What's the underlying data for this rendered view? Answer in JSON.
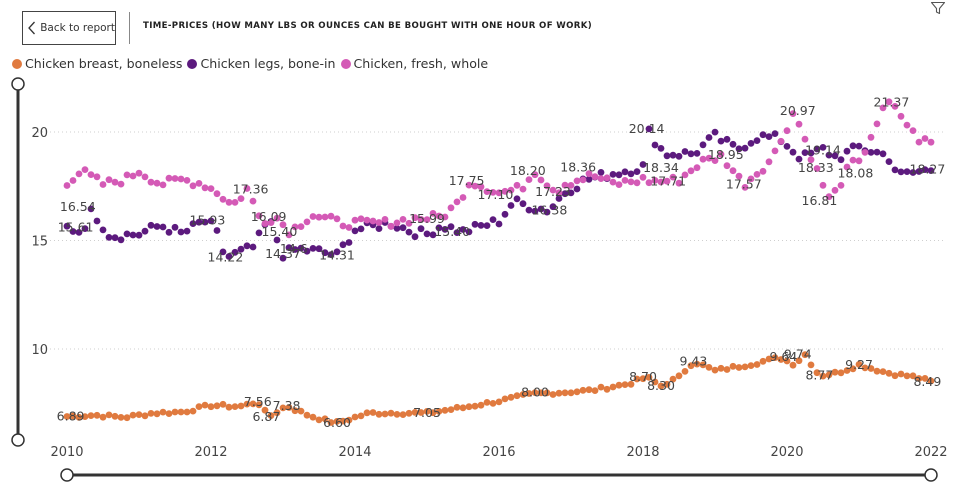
{
  "header": {
    "back_label": "Back to report",
    "title": "TIME-PRICES (HOW MANY LBS OR OUNCES CAN BE BOUGHT WITH ONE HOUR OF WORK)"
  },
  "icons": {
    "back": "chevron-left-icon",
    "filter": "filter-icon"
  },
  "chart_data": {
    "type": "scatter",
    "title": "TIME-PRICES (HOW MANY LBS OR OUNCES CAN BE BOUGHT WITH ONE HOUR OF WORK)",
    "xlabel": "",
    "ylabel": "",
    "xlim": [
      2010,
      2022
    ],
    "ylim": [
      5.3,
      22.2
    ],
    "x_ticks": [
      2010,
      2012,
      2014,
      2016,
      2018,
      2020,
      2022
    ],
    "y_ticks": [
      10,
      15,
      20
    ],
    "grid": "horizontal-dotted",
    "legend_position": "top-left",
    "series": [
      {
        "name": "Chicken breast, boneless",
        "color": "#E07A3F",
        "anchors": [
          [
            2010.0,
            6.89
          ],
          [
            2010.4,
            6.95
          ],
          [
            2010.8,
            6.85
          ],
          [
            2011.2,
            7.05
          ],
          [
            2011.6,
            7.1
          ],
          [
            2012.0,
            7.4
          ],
          [
            2012.4,
            7.35
          ],
          [
            2012.65,
            7.56
          ],
          [
            2012.8,
            6.87
          ],
          [
            2013.05,
            7.38
          ],
          [
            2013.35,
            6.95
          ],
          [
            2013.6,
            6.7
          ],
          [
            2013.75,
            6.6
          ],
          [
            2014.2,
            7.05
          ],
          [
            2014.6,
            7.05
          ],
          [
            2015.0,
            7.05
          ],
          [
            2015.5,
            7.3
          ],
          [
            2016.0,
            7.6
          ],
          [
            2016.5,
            7.95
          ],
          [
            2016.9,
            8.0
          ],
          [
            2017.3,
            8.1
          ],
          [
            2017.8,
            8.4
          ],
          [
            2018.05,
            8.7
          ],
          [
            2018.25,
            8.3
          ],
          [
            2018.5,
            8.7
          ],
          [
            2018.7,
            9.43
          ],
          [
            2019.0,
            9.0
          ],
          [
            2019.5,
            9.3
          ],
          [
            2019.9,
            9.6
          ],
          [
            2020.1,
            9.3
          ],
          [
            2020.25,
            9.74
          ],
          [
            2020.45,
            8.77
          ],
          [
            2020.7,
            8.9
          ],
          [
            2021.0,
            9.27
          ],
          [
            2021.4,
            8.9
          ],
          [
            2021.8,
            8.7
          ],
          [
            2022.0,
            8.49
          ]
        ],
        "labels": [
          {
            "x": 2010.05,
            "y": 6.89,
            "text": "6.89"
          },
          {
            "x": 2012.65,
            "y": 7.56,
            "text": "7.56"
          },
          {
            "x": 2012.77,
            "y": 6.87,
            "text": "6.87"
          },
          {
            "x": 2013.05,
            "y": 7.38,
            "text": "7.38"
          },
          {
            "x": 2013.75,
            "y": 6.6,
            "text": "6.60"
          },
          {
            "x": 2015.0,
            "y": 7.05,
            "text": "7.05"
          },
          {
            "x": 2016.5,
            "y": 8.0,
            "text": "8.00"
          },
          {
            "x": 2018.0,
            "y": 8.7,
            "text": "8.70"
          },
          {
            "x": 2018.25,
            "y": 8.3,
            "text": "8.30"
          },
          {
            "x": 2018.7,
            "y": 9.43,
            "text": "9.43"
          },
          {
            "x": 2020.15,
            "y": 9.74,
            "text": "9.74"
          },
          {
            "x": 2019.95,
            "y": 9.64,
            "text": "9.64"
          },
          {
            "x": 2020.45,
            "y": 8.77,
            "text": "8.77"
          },
          {
            "x": 2021.0,
            "y": 9.27,
            "text": "9.27"
          },
          {
            "x": 2021.95,
            "y": 8.49,
            "text": "8.49"
          }
        ]
      },
      {
        "name": "Chicken legs, bone-in",
        "color": "#5C1A7E",
        "anchors": [
          [
            2010.0,
            15.6
          ],
          [
            2010.2,
            15.4
          ],
          [
            2010.35,
            16.4
          ],
          [
            2010.6,
            15.2
          ],
          [
            2011.0,
            15.3
          ],
          [
            2011.3,
            15.7
          ],
          [
            2011.6,
            15.3
          ],
          [
            2011.9,
            15.9
          ],
          [
            2012.05,
            15.6
          ],
          [
            2012.2,
            14.2
          ],
          [
            2012.6,
            14.7
          ],
          [
            2012.8,
            16.0
          ],
          [
            2013.0,
            14.37
          ],
          [
            2013.2,
            14.6
          ],
          [
            2013.5,
            14.5
          ],
          [
            2013.75,
            14.31
          ],
          [
            2014.0,
            15.5
          ],
          [
            2014.5,
            15.8
          ],
          [
            2014.8,
            15.4
          ],
          [
            2015.0,
            15.3
          ],
          [
            2015.2,
            15.7
          ],
          [
            2015.5,
            15.4
          ],
          [
            2016.0,
            15.9
          ],
          [
            2016.2,
            16.8
          ],
          [
            2016.5,
            16.5
          ],
          [
            2016.7,
            16.4
          ],
          [
            2016.9,
            17.2
          ],
          [
            2017.2,
            17.8
          ],
          [
            2017.6,
            18.1
          ],
          [
            2018.0,
            18.4
          ],
          [
            2018.05,
            20.14
          ],
          [
            2018.3,
            19.0
          ],
          [
            2018.7,
            19.0
          ],
          [
            2019.0,
            19.8
          ],
          [
            2019.3,
            19.2
          ],
          [
            2019.6,
            19.8
          ],
          [
            2019.9,
            19.7
          ],
          [
            2020.2,
            18.8
          ],
          [
            2020.5,
            19.2
          ],
          [
            2020.7,
            18.8
          ],
          [
            2021.0,
            19.3
          ],
          [
            2021.4,
            18.9
          ],
          [
            2021.55,
            18.0
          ],
          [
            2022.0,
            18.27
          ]
        ],
        "labels": [
          {
            "x": 2010.12,
            "y": 15.61,
            "text": "15.61"
          },
          {
            "x": 2012.2,
            "y": 14.22,
            "text": "14.22"
          },
          {
            "x": 2013.0,
            "y": 14.37,
            "text": "14.37"
          },
          {
            "x": 2013.15,
            "y": 14.6,
            "text": "14.6"
          },
          {
            "x": 2013.75,
            "y": 14.31,
            "text": "14.31"
          },
          {
            "x": 2015.35,
            "y": 15.4,
            "text": "15.40"
          },
          {
            "x": 2016.7,
            "y": 16.38,
            "text": "16.38"
          },
          {
            "x": 2018.05,
            "y": 20.14,
            "text": "20.14"
          },
          {
            "x": 2018.25,
            "y": 18.34,
            "text": "18.34"
          },
          {
            "x": 2019.15,
            "y": 18.95,
            "text": "18.95"
          },
          {
            "x": 2020.5,
            "y": 19.14,
            "text": "19.14"
          },
          {
            "x": 2020.95,
            "y": 18.08,
            "text": "18.08"
          },
          {
            "x": 2021.95,
            "y": 18.27,
            "text": "18.27"
          }
        ]
      },
      {
        "name": "Chicken, fresh, whole",
        "color": "#D45AB6",
        "anchors": [
          [
            2010.0,
            17.7
          ],
          [
            2010.2,
            18.2
          ],
          [
            2010.5,
            17.6
          ],
          [
            2010.8,
            17.8
          ],
          [
            2011.0,
            18.2
          ],
          [
            2011.3,
            17.6
          ],
          [
            2011.6,
            17.8
          ],
          [
            2011.9,
            17.6
          ],
          [
            2012.1,
            17.2
          ],
          [
            2012.3,
            16.6
          ],
          [
            2012.5,
            17.36
          ],
          [
            2012.7,
            15.9
          ],
          [
            2012.9,
            16.09
          ],
          [
            2013.1,
            15.4
          ],
          [
            2013.4,
            16.2
          ],
          [
            2013.8,
            15.8
          ],
          [
            2014.0,
            15.8
          ],
          [
            2014.4,
            15.8
          ],
          [
            2014.8,
            15.99
          ],
          [
            2015.2,
            16.1
          ],
          [
            2015.4,
            16.6
          ],
          [
            2015.6,
            17.75
          ],
          [
            2016.0,
            17.2
          ],
          [
            2016.3,
            17.4
          ],
          [
            2016.5,
            18.2
          ],
          [
            2016.8,
            17.23
          ],
          [
            2016.9,
            17.6
          ],
          [
            2017.3,
            18.0
          ],
          [
            2017.6,
            17.6
          ],
          [
            2018.0,
            17.8
          ],
          [
            2018.2,
            17.71
          ],
          [
            2018.5,
            17.8
          ],
          [
            2018.8,
            18.6
          ],
          [
            2019.1,
            18.9
          ],
          [
            2019.4,
            17.57
          ],
          [
            2019.8,
            18.8
          ],
          [
            2020.1,
            20.97
          ],
          [
            2020.4,
            18.33
          ],
          [
            2020.6,
            16.81
          ],
          [
            2020.9,
            18.6
          ],
          [
            2021.0,
            18.5
          ],
          [
            2021.2,
            20.1
          ],
          [
            2021.4,
            21.37
          ],
          [
            2021.6,
            20.7
          ],
          [
            2021.8,
            19.7
          ],
          [
            2022.0,
            19.5
          ]
        ],
        "labels": [
          {
            "x": 2010.15,
            "y": 16.54,
            "text": "16.54"
          },
          {
            "x": 2011.95,
            "y": 15.93,
            "text": "15.93"
          },
          {
            "x": 2012.55,
            "y": 17.36,
            "text": "17.36"
          },
          {
            "x": 2012.8,
            "y": 16.09,
            "text": "16.09"
          },
          {
            "x": 2012.95,
            "y": 15.4,
            "text": "15.40"
          },
          {
            "x": 2015.0,
            "y": 15.99,
            "text": "15.99"
          },
          {
            "x": 2015.55,
            "y": 17.75,
            "text": "17.75"
          },
          {
            "x": 2015.95,
            "y": 17.1,
            "text": "17.10"
          },
          {
            "x": 2016.4,
            "y": 18.2,
            "text": "18.20"
          },
          {
            "x": 2016.75,
            "y": 17.23,
            "text": "17.23"
          },
          {
            "x": 2017.1,
            "y": 18.36,
            "text": "18.36"
          },
          {
            "x": 2018.35,
            "y": 17.71,
            "text": "17.71"
          },
          {
            "x": 2019.4,
            "y": 17.57,
            "text": "17.57"
          },
          {
            "x": 2020.15,
            "y": 20.97,
            "text": "20.97"
          },
          {
            "x": 2020.4,
            "y": 18.33,
            "text": "18.33"
          },
          {
            "x": 2020.45,
            "y": 16.81,
            "text": "16.81"
          },
          {
            "x": 2021.45,
            "y": 21.37,
            "text": "21.37"
          }
        ]
      }
    ]
  }
}
